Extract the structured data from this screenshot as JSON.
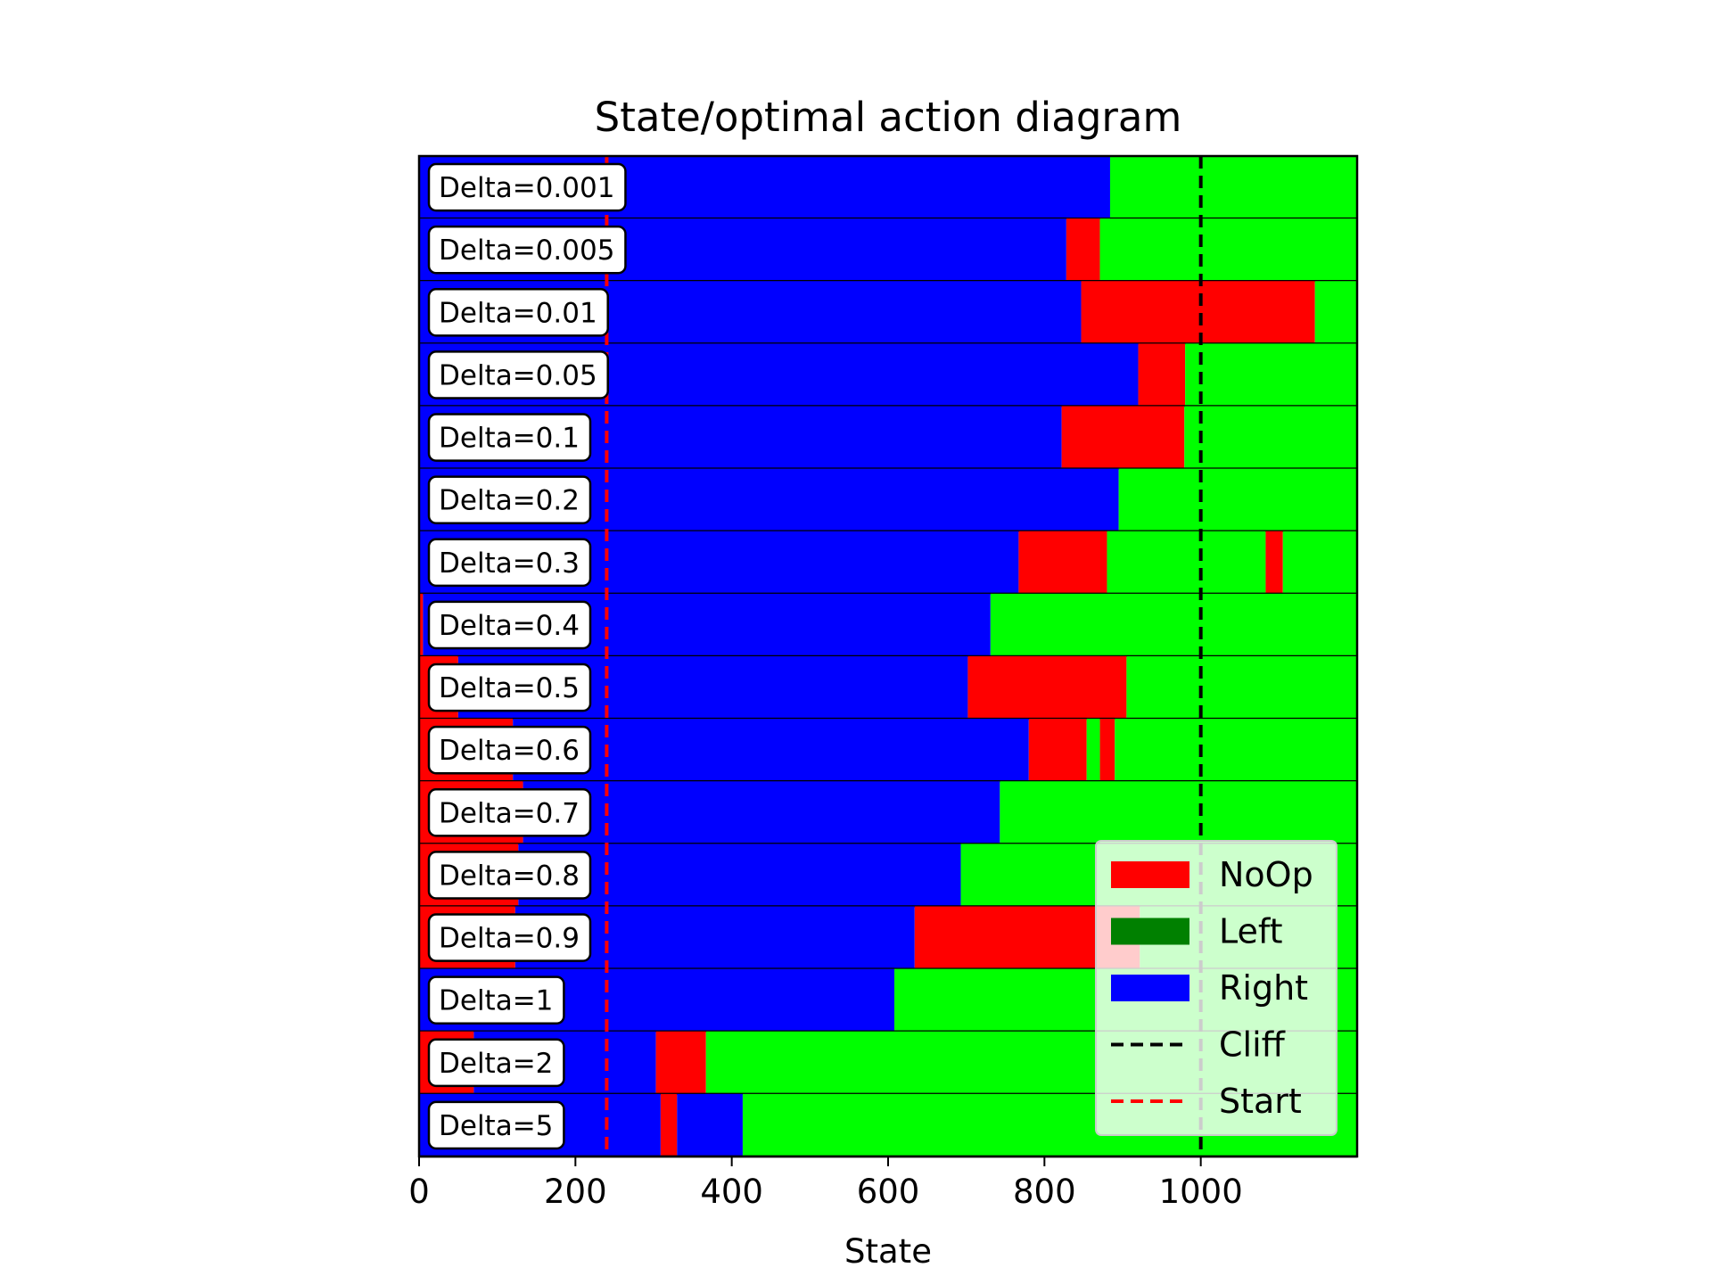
{
  "chart_data": {
    "type": "bar",
    "orientation": "horizontal-segmented",
    "title": "State/optimal action diagram",
    "xlabel": "State",
    "ylabel": "",
    "xlim": [
      0,
      1200
    ],
    "xticks": [
      0,
      200,
      400,
      600,
      800,
      1000
    ],
    "grid": false,
    "legend_position": "bottom-right",
    "colors": {
      "NoOp": "#ff0000",
      "Left_legend": "#008000",
      "Left_fill": "#00ff00",
      "Right": "#0000ff",
      "Cliff": "#000000",
      "Start": "#ff0000"
    },
    "legend": [
      {
        "label": "NoOp",
        "kind": "patch",
        "color": "#ff0000"
      },
      {
        "label": "Left",
        "kind": "patch",
        "color": "#008000"
      },
      {
        "label": "Right",
        "kind": "patch",
        "color": "#0000ff"
      },
      {
        "label": "Cliff",
        "kind": "dashed-line",
        "color": "#000000"
      },
      {
        "label": "Start",
        "kind": "dashed-line",
        "color": "#ff0000"
      }
    ],
    "cliff_x": 1000,
    "start_x": 240,
    "rows": [
      {
        "label": "Delta=0.001",
        "segments": [
          {
            "from": 0,
            "to": 884,
            "action": "Right"
          },
          {
            "from": 884,
            "to": 1200,
            "action": "Left"
          }
        ]
      },
      {
        "label": "Delta=0.005",
        "segments": [
          {
            "from": 0,
            "to": 828,
            "action": "Right"
          },
          {
            "from": 828,
            "to": 871,
            "action": "NoOp"
          },
          {
            "from": 871,
            "to": 1200,
            "action": "Left"
          }
        ]
      },
      {
        "label": "Delta=0.01",
        "segments": [
          {
            "from": 0,
            "to": 847,
            "action": "Right"
          },
          {
            "from": 847,
            "to": 1146,
            "action": "NoOp"
          },
          {
            "from": 1146,
            "to": 1200,
            "action": "Left"
          }
        ]
      },
      {
        "label": "Delta=0.05",
        "segments": [
          {
            "from": 0,
            "to": 920,
            "action": "Right"
          },
          {
            "from": 920,
            "to": 980,
            "action": "NoOp"
          },
          {
            "from": 980,
            "to": 1200,
            "action": "Left"
          }
        ]
      },
      {
        "label": "Delta=0.1",
        "segments": [
          {
            "from": 0,
            "to": 822,
            "action": "Right"
          },
          {
            "from": 822,
            "to": 979,
            "action": "NoOp"
          },
          {
            "from": 979,
            "to": 1200,
            "action": "Left"
          }
        ]
      },
      {
        "label": "Delta=0.2",
        "segments": [
          {
            "from": 0,
            "to": 895,
            "action": "Right"
          },
          {
            "from": 895,
            "to": 1200,
            "action": "Left"
          }
        ]
      },
      {
        "label": "Delta=0.3",
        "segments": [
          {
            "from": 0,
            "to": 767,
            "action": "Right"
          },
          {
            "from": 767,
            "to": 880,
            "action": "NoOp"
          },
          {
            "from": 880,
            "to": 1083,
            "action": "Left"
          },
          {
            "from": 1083,
            "to": 1105,
            "action": "NoOp"
          },
          {
            "from": 1105,
            "to": 1200,
            "action": "Left"
          }
        ]
      },
      {
        "label": "Delta=0.4",
        "segments": [
          {
            "from": 0,
            "to": 5,
            "action": "NoOp"
          },
          {
            "from": 5,
            "to": 731,
            "action": "Right"
          },
          {
            "from": 731,
            "to": 1200,
            "action": "Left"
          }
        ]
      },
      {
        "label": "Delta=0.5",
        "segments": [
          {
            "from": 0,
            "to": 50,
            "action": "NoOp"
          },
          {
            "from": 50,
            "to": 702,
            "action": "Right"
          },
          {
            "from": 702,
            "to": 905,
            "action": "NoOp"
          },
          {
            "from": 905,
            "to": 1200,
            "action": "Left"
          }
        ]
      },
      {
        "label": "Delta=0.6",
        "segments": [
          {
            "from": 0,
            "to": 120,
            "action": "NoOp"
          },
          {
            "from": 120,
            "to": 780,
            "action": "Right"
          },
          {
            "from": 780,
            "to": 854,
            "action": "NoOp"
          },
          {
            "from": 854,
            "to": 871,
            "action": "Left"
          },
          {
            "from": 871,
            "to": 890,
            "action": "NoOp"
          },
          {
            "from": 890,
            "to": 1200,
            "action": "Left"
          }
        ]
      },
      {
        "label": "Delta=0.7",
        "segments": [
          {
            "from": 0,
            "to": 133,
            "action": "NoOp"
          },
          {
            "from": 133,
            "to": 743,
            "action": "Right"
          },
          {
            "from": 743,
            "to": 1200,
            "action": "Left"
          }
        ]
      },
      {
        "label": "Delta=0.8",
        "segments": [
          {
            "from": 0,
            "to": 127,
            "action": "NoOp"
          },
          {
            "from": 127,
            "to": 693,
            "action": "Right"
          },
          {
            "from": 693,
            "to": 1200,
            "action": "Left"
          }
        ]
      },
      {
        "label": "Delta=0.9",
        "segments": [
          {
            "from": 0,
            "to": 123,
            "action": "NoOp"
          },
          {
            "from": 123,
            "to": 634,
            "action": "Right"
          },
          {
            "from": 634,
            "to": 922,
            "action": "NoOp"
          },
          {
            "from": 922,
            "to": 1200,
            "action": "Left"
          }
        ]
      },
      {
        "label": "Delta=1",
        "segments": [
          {
            "from": 0,
            "to": 608,
            "action": "Right"
          },
          {
            "from": 608,
            "to": 1200,
            "action": "Left"
          }
        ]
      },
      {
        "label": "Delta=2",
        "segments": [
          {
            "from": 0,
            "to": 70,
            "action": "NoOp"
          },
          {
            "from": 70,
            "to": 303,
            "action": "Right"
          },
          {
            "from": 303,
            "to": 367,
            "action": "NoOp"
          },
          {
            "from": 367,
            "to": 1200,
            "action": "Left"
          }
        ]
      },
      {
        "label": "Delta=5",
        "segments": [
          {
            "from": 0,
            "to": 309,
            "action": "Right"
          },
          {
            "from": 309,
            "to": 330,
            "action": "NoOp"
          },
          {
            "from": 330,
            "to": 414,
            "action": "Right"
          },
          {
            "from": 414,
            "to": 1200,
            "action": "Left"
          }
        ]
      }
    ]
  }
}
